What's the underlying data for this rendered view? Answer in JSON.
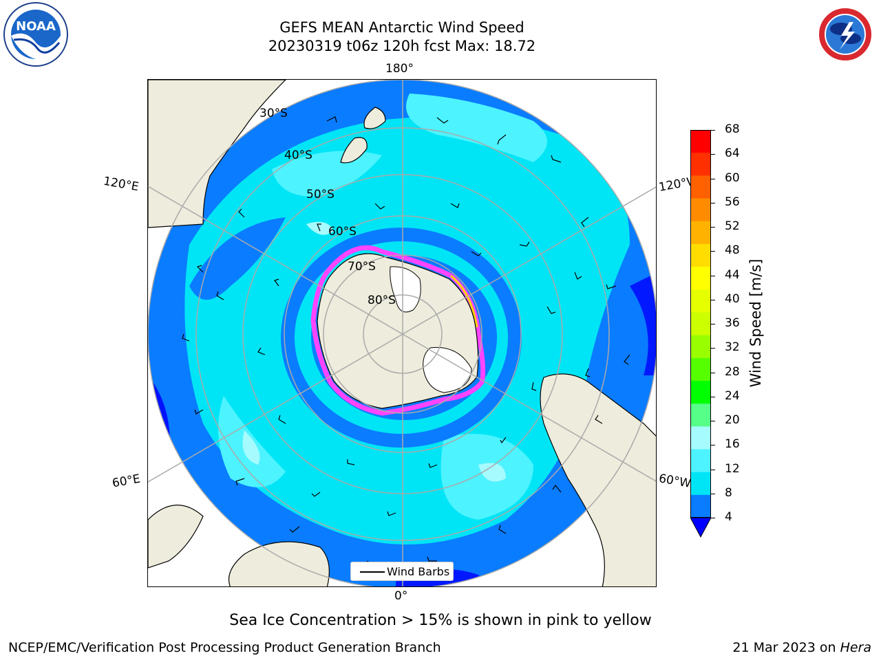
{
  "title": {
    "line1": "GEFS MEAN Antarctic Wind Speed",
    "line2": "20230319 t06z 120h fcst   Max: 18.72"
  },
  "logos": {
    "left": {
      "icon": "noaa-logo",
      "text": "NOAA"
    },
    "right": {
      "icon": "national-weather-service-logo",
      "text": "NATIONAL WEATHER SERVICE"
    }
  },
  "map": {
    "longitude_labels": {
      "top": "180°",
      "bottom": "0°",
      "left_upper": "120°E",
      "left_lower": "60°E",
      "right_upper": "120°W",
      "right_lower": "60°W"
    },
    "latitude_labels": [
      "30°S",
      "40°S",
      "50°S",
      "60°S",
      "70°S",
      "80°S"
    ],
    "legend": {
      "label": "Wind Barbs"
    },
    "colors": {
      "land": "#eeecdc",
      "ocean_4_8": "#0a7cff",
      "ocean_8_12": "#00e5f5",
      "ocean_12_16": "#4df3ff",
      "ocean_16_20": "#a6fbff",
      "ocean_below_4": "#0000ff",
      "sea_ice": "#ff44ff",
      "sea_ice_high": "#ffd500"
    }
  },
  "colorbar": {
    "label": "Wind Speed [m/s]",
    "ticks": [
      "68",
      "64",
      "60",
      "56",
      "52",
      "48",
      "44",
      "40",
      "36",
      "32",
      "28",
      "24",
      "20",
      "16",
      "12",
      "8",
      "4"
    ],
    "colors": [
      "#ff0000",
      "#ff3000",
      "#ff6000",
      "#ff8c00",
      "#ffb300",
      "#ffdd00",
      "#ffff00",
      "#e6ff00",
      "#ccff00",
      "#99ff00",
      "#55ff00",
      "#00ff00",
      "#55ff88",
      "#a6fbff",
      "#4df3ff",
      "#00e5f5",
      "#0a7cff"
    ],
    "extend_color": "#0000ff"
  },
  "note": "Sea Ice Concentration > 15% is shown in pink to yellow",
  "footer": {
    "left": "NCEP/EMC/Verification Post Processing Product Generation Branch",
    "date": "21 Mar 2023 on ",
    "machine": "Hera"
  }
}
